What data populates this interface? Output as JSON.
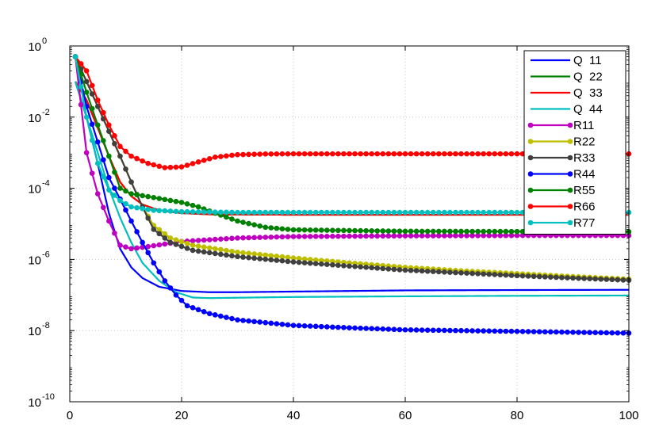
{
  "chart_data": {
    "type": "line",
    "title": "",
    "xlabel": "",
    "ylabel": "",
    "xlim": [
      0,
      100
    ],
    "ylim": [
      1e-10,
      1
    ],
    "yscale": "log",
    "grid": true,
    "legend_position": "top-right",
    "x_ticks": [
      "0",
      "20",
      "40",
      "60",
      "80",
      "100"
    ],
    "y_ticks": [
      {
        "base": "10",
        "exp": "0",
        "value": 1
      },
      {
        "base": "10",
        "exp": "-2",
        "value": 0.01
      },
      {
        "base": "10",
        "exp": "-4",
        "value": 0.0001
      },
      {
        "base": "10",
        "exp": "-6",
        "value": 1e-06
      },
      {
        "base": "10",
        "exp": "-8",
        "value": 1e-08
      },
      {
        "base": "10",
        "exp": "-10",
        "value": 1e-10
      }
    ],
    "series": [
      {
        "name": "Q  11",
        "color": "#0000ff",
        "markers": false,
        "points": [
          [
            1,
            0.1
          ],
          [
            3,
            0.01
          ],
          [
            5,
            0.0005
          ],
          [
            7,
            2e-05
          ],
          [
            9,
            2e-06
          ],
          [
            11,
            6e-07
          ],
          [
            13,
            3e-07
          ],
          [
            16,
            1.7e-07
          ],
          [
            20,
            1.3e-07
          ],
          [
            25,
            1.2e-07
          ],
          [
            30,
            1.2e-07
          ],
          [
            40,
            1.25e-07
          ],
          [
            60,
            1.35e-07
          ],
          [
            80,
            1.38e-07
          ],
          [
            100,
            1.4e-07
          ]
        ]
      },
      {
        "name": "Q  22",
        "color": "#008000",
        "markers": false,
        "points": [
          [
            1,
            0.1
          ],
          [
            3,
            0.03
          ],
          [
            5,
            0.005
          ],
          [
            7,
            0.0008
          ],
          [
            9,
            0.00015
          ],
          [
            11,
            6e-05
          ],
          [
            13,
            3.5e-05
          ],
          [
            16,
            2.4e-05
          ],
          [
            20,
            2e-05
          ],
          [
            25,
            1.85e-05
          ],
          [
            40,
            1.8e-05
          ],
          [
            60,
            1.8e-05
          ],
          [
            80,
            1.8e-05
          ],
          [
            100,
            1.8e-05
          ]
        ]
      },
      {
        "name": "Q  33",
        "color": "#ff0000",
        "markers": false,
        "points": [
          [
            1,
            0.1
          ],
          [
            3,
            0.03
          ],
          [
            5,
            0.005
          ],
          [
            7,
            0.0008
          ],
          [
            9,
            0.00015
          ],
          [
            11,
            6e-05
          ],
          [
            13,
            3.5e-05
          ],
          [
            16,
            2.4e-05
          ],
          [
            20,
            2e-05
          ],
          [
            25,
            1.85e-05
          ],
          [
            40,
            1.8e-05
          ],
          [
            60,
            1.8e-05
          ],
          [
            80,
            1.8e-05
          ],
          [
            100,
            1.8e-05
          ]
        ]
      },
      {
        "name": "Q  44",
        "color": "#00bfbf",
        "markers": false,
        "points": [
          [
            1,
            0.1
          ],
          [
            3,
            0.01
          ],
          [
            5,
            0.001
          ],
          [
            7,
            0.0001
          ],
          [
            9,
            1.5e-05
          ],
          [
            11,
            3e-06
          ],
          [
            13,
            8e-07
          ],
          [
            16,
            2.5e-07
          ],
          [
            19,
            1.2e-07
          ],
          [
            22,
            8.5e-08
          ],
          [
            25,
            8.2e-08
          ],
          [
            40,
            8.8e-08
          ],
          [
            60,
            9.2e-08
          ],
          [
            80,
            9.5e-08
          ],
          [
            100,
            9.7e-08
          ]
        ]
      },
      {
        "name": "R11",
        "color": "#bf00bf",
        "markers": true,
        "points": [
          [
            1,
            0.5
          ],
          [
            3,
            0.001
          ],
          [
            5,
            7e-05
          ],
          [
            7,
            1.2e-05
          ],
          [
            9,
            2.5e-06
          ],
          [
            11,
            2e-06
          ],
          [
            14,
            2.3e-06
          ],
          [
            20,
            3.2e-06
          ],
          [
            30,
            4e-06
          ],
          [
            40,
            4.4e-06
          ],
          [
            60,
            4.6e-06
          ],
          [
            80,
            4.7e-06
          ],
          [
            100,
            4.7e-06
          ]
        ]
      },
      {
        "name": "R22",
        "color": "#bfbf00",
        "markers": true,
        "points": [
          [
            1,
            0.5
          ],
          [
            3,
            0.1
          ],
          [
            5,
            0.02
          ],
          [
            7,
            0.004
          ],
          [
            9,
            0.0008
          ],
          [
            11,
            0.00015
          ],
          [
            13,
            3e-05
          ],
          [
            15,
            9e-06
          ],
          [
            18,
            4e-06
          ],
          [
            22,
            2.5e-06
          ],
          [
            30,
            1.6e-06
          ],
          [
            40,
            1.1e-06
          ],
          [
            50,
            8e-07
          ],
          [
            60,
            6e-07
          ],
          [
            70,
            4.8e-07
          ],
          [
            80,
            4e-07
          ],
          [
            90,
            3.3e-07
          ],
          [
            100,
            2.8e-07
          ]
        ]
      },
      {
        "name": "R33",
        "color": "#404040",
        "markers": true,
        "points": [
          [
            1,
            0.5
          ],
          [
            3,
            0.1
          ],
          [
            5,
            0.02
          ],
          [
            7,
            0.004
          ],
          [
            9,
            0.0008
          ],
          [
            11,
            0.00015
          ],
          [
            13,
            3e-05
          ],
          [
            15,
            7e-06
          ],
          [
            18,
            3e-06
          ],
          [
            22,
            1.8e-06
          ],
          [
            30,
            1.2e-06
          ],
          [
            40,
            8.5e-07
          ],
          [
            50,
            6.5e-07
          ],
          [
            60,
            5e-07
          ],
          [
            70,
            4.2e-07
          ],
          [
            80,
            3.5e-07
          ],
          [
            90,
            3e-07
          ],
          [
            100,
            2.6e-07
          ]
        ]
      },
      {
        "name": "R44",
        "color": "#0000ff",
        "markers": true,
        "points": [
          [
            1,
            0.5
          ],
          [
            3,
            0.02
          ],
          [
            5,
            0.002
          ],
          [
            7,
            0.0002
          ],
          [
            9,
            5e-05
          ],
          [
            11,
            1.2e-05
          ],
          [
            13,
            3e-06
          ],
          [
            15,
            8e-07
          ],
          [
            17,
            2.5e-07
          ],
          [
            19,
            1e-07
          ],
          [
            21,
            5e-08
          ],
          [
            25,
            3e-08
          ],
          [
            30,
            2e-08
          ],
          [
            40,
            1.4e-08
          ],
          [
            50,
            1.2e-08
          ],
          [
            60,
            1.05e-08
          ],
          [
            80,
            9.5e-09
          ],
          [
            100,
            8.5e-09
          ]
        ]
      },
      {
        "name": "R55",
        "color": "#008000",
        "markers": true,
        "points": [
          [
            1,
            0.5
          ],
          [
            3,
            0.05
          ],
          [
            5,
            0.006
          ],
          [
            7,
            0.0008
          ],
          [
            9,
            0.0001
          ],
          [
            11,
            7e-05
          ],
          [
            15,
            5.5e-05
          ],
          [
            20,
            4e-05
          ],
          [
            23,
            3e-05
          ],
          [
            26,
            2e-05
          ],
          [
            30,
            1.2e-05
          ],
          [
            35,
            8e-06
          ],
          [
            40,
            6.8e-06
          ],
          [
            60,
            6.2e-06
          ],
          [
            80,
            6.1e-06
          ],
          [
            100,
            6e-06
          ]
        ]
      },
      {
        "name": "R66",
        "color": "#ff0000",
        "markers": true,
        "points": [
          [
            1,
            0.5
          ],
          [
            3,
            0.2
          ],
          [
            5,
            0.03
          ],
          [
            7,
            0.006
          ],
          [
            9,
            0.0015
          ],
          [
            11,
            0.0008
          ],
          [
            14,
            0.0005
          ],
          [
            17,
            0.00038
          ],
          [
            20,
            0.0004
          ],
          [
            23,
            0.00055
          ],
          [
            26,
            0.00075
          ],
          [
            30,
            0.00088
          ],
          [
            35,
            0.00092
          ],
          [
            40,
            0.00093
          ],
          [
            60,
            0.00093
          ],
          [
            80,
            0.00093
          ],
          [
            100,
            0.00093
          ]
        ]
      },
      {
        "name": "R77",
        "color": "#00bfbf",
        "markers": true,
        "points": [
          [
            1,
            0.5
          ],
          [
            3,
            0.01
          ],
          [
            5,
            0.0005
          ],
          [
            7,
            9e-05
          ],
          [
            9,
            4.5e-05
          ],
          [
            11,
            3e-05
          ],
          [
            15,
            2.4e-05
          ],
          [
            20,
            2.2e-05
          ],
          [
            30,
            2.1e-05
          ],
          [
            60,
            2.1e-05
          ],
          [
            100,
            2.1e-05
          ]
        ]
      }
    ]
  }
}
